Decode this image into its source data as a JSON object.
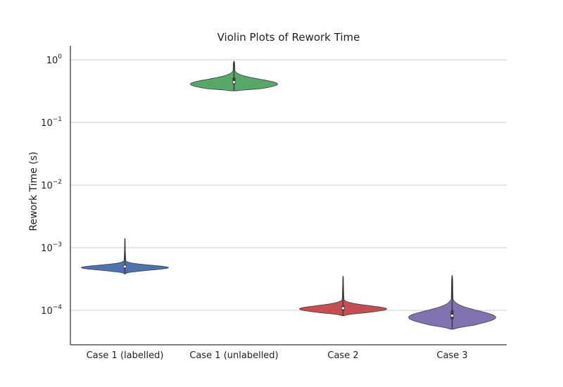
{
  "chart_data": {
    "type": "violin",
    "title": "Violin Plots of Rework Time",
    "xlabel": "",
    "ylabel": "Rework Time (s)",
    "yscale": "log",
    "ylim": [
      3e-05,
      1.6
    ],
    "yticks": [
      {
        "value": 1,
        "base": "10",
        "exp": "0"
      },
      {
        "value": 0.1,
        "base": "10",
        "exp": "−1"
      },
      {
        "value": 0.01,
        "base": "10",
        "exp": "−2"
      },
      {
        "value": 0.001,
        "base": "10",
        "exp": "−3"
      },
      {
        "value": 0.0001,
        "base": "10",
        "exp": "−4"
      }
    ],
    "grid": "horizontal",
    "categories": [
      "Case 1 (labelled)",
      "Case 1 (unlabelled)",
      "Case 2",
      "Case 3"
    ],
    "violins": [
      {
        "category": "Case 1 (labelled)",
        "color": "#4c72b0",
        "min": 0.00038,
        "q1": 0.00047,
        "median": 0.0005,
        "q3": 0.00053,
        "max": 0.0014,
        "mode": 0.00048
      },
      {
        "category": "Case 1 (unlabelled)",
        "color": "#55a868",
        "min": 0.32,
        "q1": 0.41,
        "median": 0.44,
        "q3": 0.52,
        "max": 0.95,
        "mode": 0.41
      },
      {
        "category": "Case 2",
        "color": "#c44e52",
        "min": 8.2e-05,
        "q1": 0.0001,
        "median": 0.000108,
        "q3": 0.000118,
        "max": 0.00035,
        "mode": 0.000105
      },
      {
        "category": "Case 3",
        "color": "#8172b2",
        "min": 5e-05,
        "q1": 7.2e-05,
        "median": 8.2e-05,
        "q3": 0.0001,
        "max": 0.00036,
        "mode": 7.7e-05
      }
    ]
  }
}
